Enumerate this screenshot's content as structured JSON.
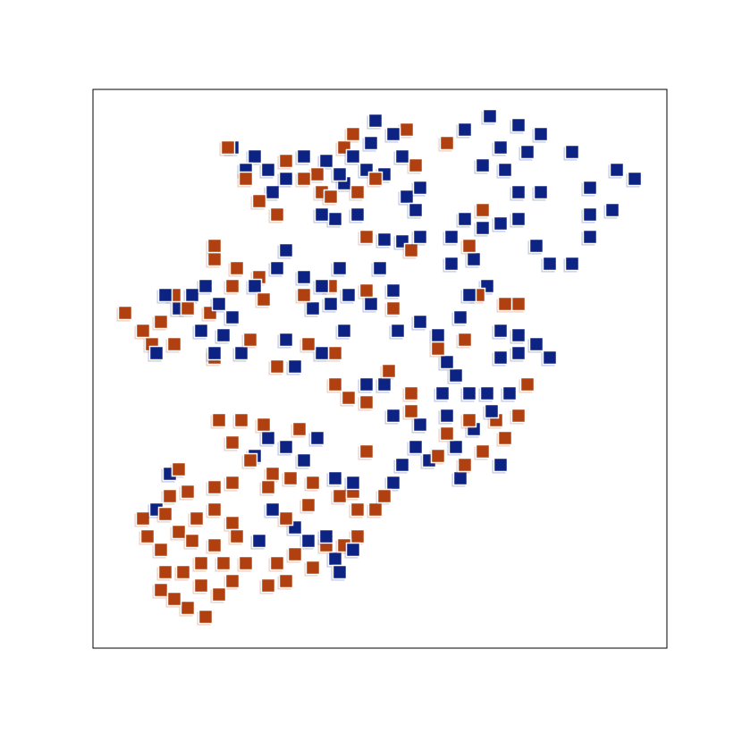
{
  "chart_data": {
    "type": "scatter",
    "title": "",
    "xlabel": "",
    "ylabel": "",
    "xlim": [
      0,
      64.2
    ],
    "ylim": [
      0,
      62.5
    ],
    "grid": false,
    "axis_ticks": false,
    "marker": "square",
    "series": [
      {
        "color": "#0d2383",
        "points": [
          [
            31.6,
            59.0
          ],
          [
            33.6,
            57.5
          ],
          [
            31.1,
            56.5
          ],
          [
            29.1,
            55.0
          ],
          [
            30.6,
            53.5
          ],
          [
            32.6,
            53.0
          ],
          [
            34.6,
            55.0
          ],
          [
            36.6,
            51.5
          ],
          [
            35.1,
            50.5
          ],
          [
            36.1,
            49.0
          ],
          [
            27.6,
            53.0
          ],
          [
            26.1,
            54.5
          ],
          [
            27.1,
            48.0
          ],
          [
            29.6,
            48.5
          ],
          [
            25.6,
            48.5
          ],
          [
            41.6,
            58.0
          ],
          [
            44.4,
            59.5
          ],
          [
            47.6,
            58.5
          ],
          [
            50.1,
            57.5
          ],
          [
            48.6,
            55.5
          ],
          [
            45.6,
            56.0
          ],
          [
            43.6,
            54.0
          ],
          [
            46.1,
            53.5
          ],
          [
            47.6,
            51.0
          ],
          [
            50.1,
            51.0
          ],
          [
            53.6,
            55.5
          ],
          [
            55.6,
            51.5
          ],
          [
            58.6,
            53.5
          ],
          [
            60.6,
            52.5
          ],
          [
            55.6,
            48.5
          ],
          [
            58.1,
            49.0
          ],
          [
            55.6,
            46.0
          ],
          [
            53.6,
            43.0
          ],
          [
            51.1,
            43.0
          ],
          [
            49.6,
            45.0
          ],
          [
            47.6,
            48.0
          ],
          [
            45.6,
            47.5
          ],
          [
            43.6,
            47.0
          ],
          [
            41.6,
            48.0
          ],
          [
            40.1,
            46.0
          ],
          [
            40.1,
            43.0
          ],
          [
            42.6,
            43.5
          ],
          [
            36.6,
            46.0
          ],
          [
            34.6,
            45.5
          ],
          [
            32.6,
            45.7
          ],
          [
            15.6,
            56.0
          ],
          [
            18.1,
            55.0
          ],
          [
            19.6,
            53.5
          ],
          [
            17.1,
            53.5
          ],
          [
            20.1,
            51.0
          ],
          [
            21.6,
            52.5
          ],
          [
            23.6,
            55.0
          ],
          [
            28.1,
            52.0
          ],
          [
            8.1,
            39.5
          ],
          [
            9.6,
            38.0
          ],
          [
            11.1,
            39.5
          ],
          [
            12.6,
            40.5
          ],
          [
            14.1,
            38.5
          ],
          [
            15.6,
            37.0
          ],
          [
            12.1,
            35.5
          ],
          [
            14.6,
            35.0
          ],
          [
            7.1,
            33.0
          ],
          [
            13.6,
            33.0
          ],
          [
            16.6,
            33.0
          ],
          [
            18.1,
            40.5
          ],
          [
            21.6,
            44.5
          ],
          [
            20.6,
            42.5
          ],
          [
            23.6,
            41.5
          ],
          [
            25.6,
            40.5
          ],
          [
            27.6,
            42.5
          ],
          [
            24.6,
            38.0
          ],
          [
            26.6,
            38.5
          ],
          [
            28.6,
            39.5
          ],
          [
            32.1,
            42.5
          ],
          [
            31.1,
            38.5
          ],
          [
            33.6,
            40.0
          ],
          [
            21.6,
            34.5
          ],
          [
            22.6,
            31.5
          ],
          [
            25.6,
            33.0
          ],
          [
            28.1,
            35.5
          ],
          [
            34.1,
            35.5
          ],
          [
            36.6,
            36.5
          ],
          [
            38.6,
            35.0
          ],
          [
            41.1,
            37.0
          ],
          [
            42.1,
            39.5
          ],
          [
            44.1,
            40.5
          ],
          [
            45.6,
            35.5
          ],
          [
            47.6,
            35.0
          ],
          [
            49.6,
            34.0
          ],
          [
            51.1,
            32.5
          ],
          [
            47.6,
            33.0
          ],
          [
            45.6,
            32.5
          ],
          [
            39.6,
            32.0
          ],
          [
            40.6,
            30.5
          ],
          [
            42.1,
            28.5
          ],
          [
            39.1,
            28.5
          ],
          [
            44.1,
            28.5
          ],
          [
            46.6,
            28.5
          ],
          [
            33.6,
            26.0
          ],
          [
            36.6,
            25.0
          ],
          [
            39.6,
            26.0
          ],
          [
            42.6,
            24.5
          ],
          [
            44.6,
            26.5
          ],
          [
            36.1,
            22.5
          ],
          [
            37.6,
            21.0
          ],
          [
            34.6,
            20.5
          ],
          [
            40.6,
            22.5
          ],
          [
            41.1,
            19.0
          ],
          [
            45.6,
            20.5
          ],
          [
            32.6,
            29.5
          ],
          [
            30.6,
            29.5
          ],
          [
            19.6,
            23.5
          ],
          [
            21.6,
            22.5
          ],
          [
            23.6,
            21.0
          ],
          [
            25.1,
            23.5
          ],
          [
            18.1,
            21.5
          ],
          [
            27.1,
            19.0
          ],
          [
            29.1,
            18.5
          ],
          [
            33.6,
            18.5
          ],
          [
            20.1,
            15.5
          ],
          [
            22.6,
            13.5
          ],
          [
            24.1,
            12.0
          ],
          [
            26.1,
            12.5
          ],
          [
            27.1,
            10.0
          ],
          [
            29.1,
            11.0
          ],
          [
            7.1,
            15.5
          ],
          [
            8.6,
            19.5
          ],
          [
            18.6,
            12.0
          ],
          [
            27.6,
            8.5
          ]
        ]
      },
      {
        "color": "#b0400f",
        "points": [
          [
            35.1,
            58.0
          ],
          [
            29.1,
            57.5
          ],
          [
            28.1,
            56.0
          ],
          [
            36.1,
            54.0
          ],
          [
            31.6,
            52.5
          ],
          [
            29.6,
            51.0
          ],
          [
            26.6,
            50.5
          ],
          [
            30.6,
            46.0
          ],
          [
            35.6,
            44.5
          ],
          [
            39.6,
            56.5
          ],
          [
            43.6,
            49.0
          ],
          [
            42.1,
            45.0
          ],
          [
            15.1,
            56.0
          ],
          [
            17.1,
            52.5
          ],
          [
            18.6,
            50.0
          ],
          [
            20.6,
            48.5
          ],
          [
            23.6,
            52.5
          ],
          [
            25.1,
            53.0
          ],
          [
            21.6,
            54.5
          ],
          [
            13.6,
            45.0
          ],
          [
            13.6,
            43.5
          ],
          [
            16.1,
            42.5
          ],
          [
            18.6,
            41.5
          ],
          [
            19.1,
            39.0
          ],
          [
            15.6,
            40.5
          ],
          [
            13.1,
            37.5
          ],
          [
            10.6,
            38.0
          ],
          [
            9.1,
            39.5
          ],
          [
            7.6,
            36.5
          ],
          [
            5.6,
            35.5
          ],
          [
            3.6,
            37.5
          ],
          [
            6.6,
            34.0
          ],
          [
            9.1,
            34.0
          ],
          [
            13.6,
            32.5
          ],
          [
            17.6,
            34.5
          ],
          [
            23.6,
            39.5
          ],
          [
            26.6,
            40.5
          ],
          [
            24.1,
            34.0
          ],
          [
            27.1,
            33.0
          ],
          [
            20.6,
            31.5
          ],
          [
            30.6,
            40.0
          ],
          [
            33.6,
            38.0
          ],
          [
            25.6,
            51.0
          ],
          [
            33.1,
            31.0
          ],
          [
            27.1,
            29.5
          ],
          [
            28.6,
            28.0
          ],
          [
            30.6,
            27.5
          ],
          [
            35.6,
            28.5
          ],
          [
            38.6,
            33.5
          ],
          [
            41.6,
            34.5
          ],
          [
            43.1,
            39.5
          ],
          [
            46.1,
            38.5
          ],
          [
            47.6,
            38.5
          ],
          [
            48.6,
            29.5
          ],
          [
            47.6,
            26.0
          ],
          [
            45.1,
            25.5
          ],
          [
            42.1,
            25.5
          ],
          [
            39.6,
            24.0
          ],
          [
            35.6,
            26.5
          ],
          [
            38.6,
            21.5
          ],
          [
            41.6,
            20.5
          ],
          [
            43.6,
            22.0
          ],
          [
            46.1,
            23.5
          ],
          [
            14.1,
            25.5
          ],
          [
            16.6,
            25.5
          ],
          [
            19.1,
            25.0
          ],
          [
            23.1,
            24.5
          ],
          [
            15.6,
            23.0
          ],
          [
            17.6,
            21.0
          ],
          [
            20.1,
            19.5
          ],
          [
            22.1,
            19.0
          ],
          [
            19.6,
            18.0
          ],
          [
            24.6,
            18.5
          ],
          [
            13.6,
            18.0
          ],
          [
            10.6,
            17.5
          ],
          [
            8.6,
            17.0
          ],
          [
            8.1,
            15.0
          ],
          [
            5.6,
            14.5
          ],
          [
            6.1,
            12.5
          ],
          [
            7.6,
            11.0
          ],
          [
            9.6,
            13.0
          ],
          [
            11.6,
            14.5
          ],
          [
            13.6,
            15.5
          ],
          [
            15.6,
            14.0
          ],
          [
            13.6,
            11.5
          ],
          [
            12.1,
            9.5
          ],
          [
            10.1,
            8.5
          ],
          [
            8.1,
            8.5
          ],
          [
            7.6,
            6.5
          ],
          [
            9.1,
            5.5
          ],
          [
            10.6,
            4.5
          ],
          [
            12.6,
            3.5
          ],
          [
            14.1,
            6.0
          ],
          [
            15.6,
            7.5
          ],
          [
            17.1,
            9.5
          ],
          [
            19.6,
            7.0
          ],
          [
            21.6,
            7.5
          ],
          [
            14.6,
            9.5
          ],
          [
            11.1,
            12.0
          ],
          [
            15.6,
            18.5
          ],
          [
            9.6,
            20.0
          ],
          [
            24.1,
            16.0
          ],
          [
            27.6,
            17.0
          ],
          [
            29.6,
            15.5
          ],
          [
            31.6,
            15.5
          ],
          [
            29.6,
            12.5
          ],
          [
            28.1,
            11.5
          ],
          [
            26.1,
            11.5
          ],
          [
            22.6,
            10.5
          ],
          [
            21.6,
            14.5
          ],
          [
            20.6,
            9.5
          ],
          [
            24.6,
            9.0
          ],
          [
            30.6,
            22.0
          ],
          [
            29.1,
            17.5
          ],
          [
            32.6,
            17.0
          ],
          [
            16.1,
            12.5
          ],
          [
            12.1,
            7.0
          ]
        ]
      }
    ]
  }
}
